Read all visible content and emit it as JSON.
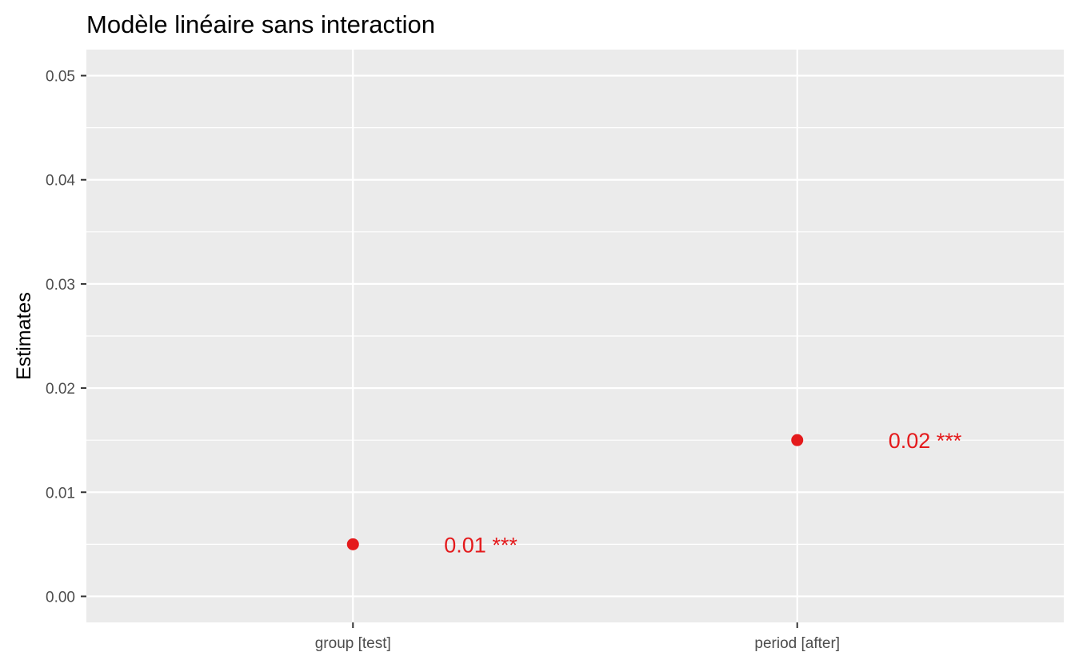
{
  "chart_data": {
    "type": "scatter",
    "title": "Modèle linéaire sans interaction",
    "xlabel": "",
    "ylabel": "Estimates",
    "categories": [
      "group [test]",
      "period [after]"
    ],
    "values": [
      0.005,
      0.015
    ],
    "value_labels": [
      "0.01 ***",
      "0.02 ***"
    ],
    "ylim": [
      -0.0025,
      0.0525
    ],
    "y_ticks": [
      0.0,
      0.01,
      0.02,
      0.03,
      0.04,
      0.05
    ],
    "y_tick_labels": [
      "0.00",
      "0.01",
      "0.02",
      "0.03",
      "0.04",
      "0.05"
    ],
    "grid": true,
    "legend": "none",
    "colors": {
      "point": "#e41a1c",
      "panel": "#ebebeb",
      "grid": "#ffffff"
    }
  }
}
